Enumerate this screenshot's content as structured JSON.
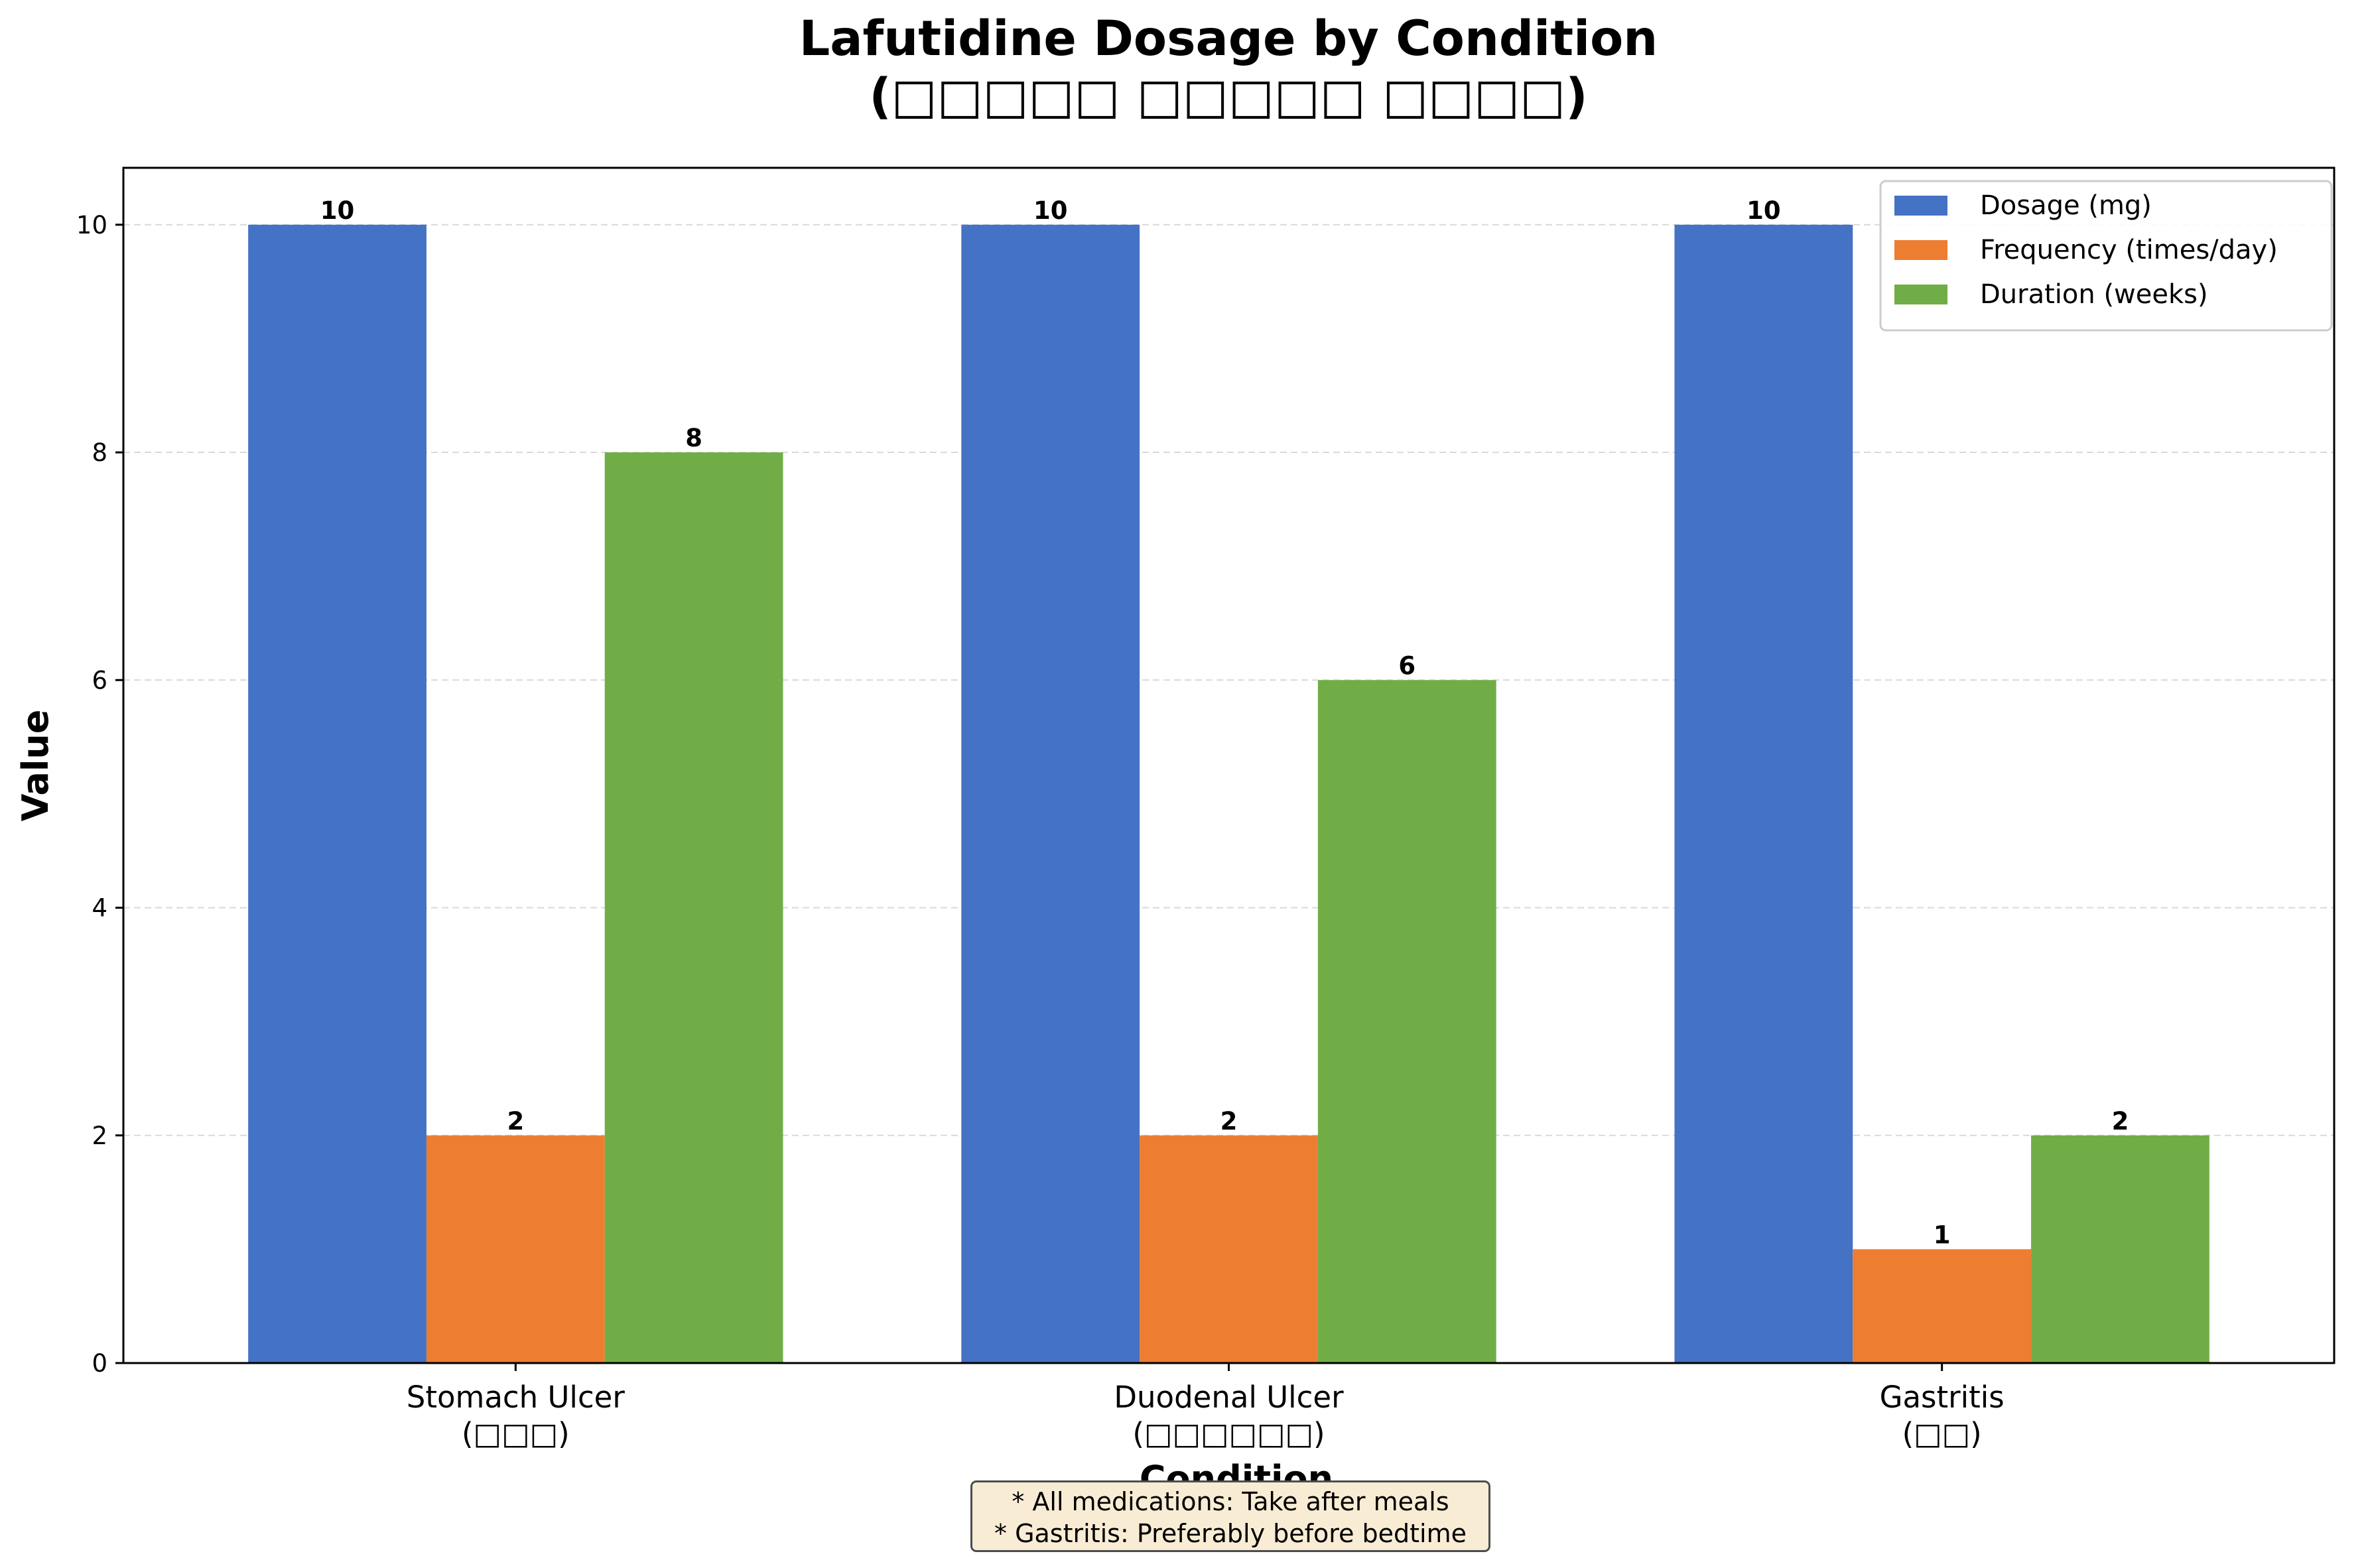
{
  "chart_data": {
    "type": "bar",
    "title": "Lafutidine Dosage by Condition",
    "subtitle": "(□□□□□ □□□□□ □□□□)",
    "xlabel": "Condition",
    "ylabel": "Value",
    "categories": [
      {
        "name": "Stomach Ulcer",
        "sub": "(□□□)"
      },
      {
        "name": "Duodenal Ulcer",
        "sub": "(□□□□□□)"
      },
      {
        "name": "Gastritis",
        "sub": "(□□)"
      }
    ],
    "series": [
      {
        "name": "Dosage (mg)",
        "color": "#4472c4",
        "values": [
          10,
          10,
          10
        ]
      },
      {
        "name": "Frequency (times/day)",
        "color": "#ed7d31",
        "values": [
          2,
          2,
          1
        ]
      },
      {
        "name": "Duration (weeks)",
        "color": "#70ad47",
        "values": [
          8,
          6,
          2
        ]
      }
    ],
    "ylim": [
      0,
      10.5
    ],
    "yticks": [
      0,
      2,
      4,
      6,
      8,
      10
    ],
    "grid": "y-dashed",
    "legend": "top-right"
  },
  "notes": [
    "* All medications: Take after meals",
    "* Gastritis: Preferably before bedtime"
  ]
}
